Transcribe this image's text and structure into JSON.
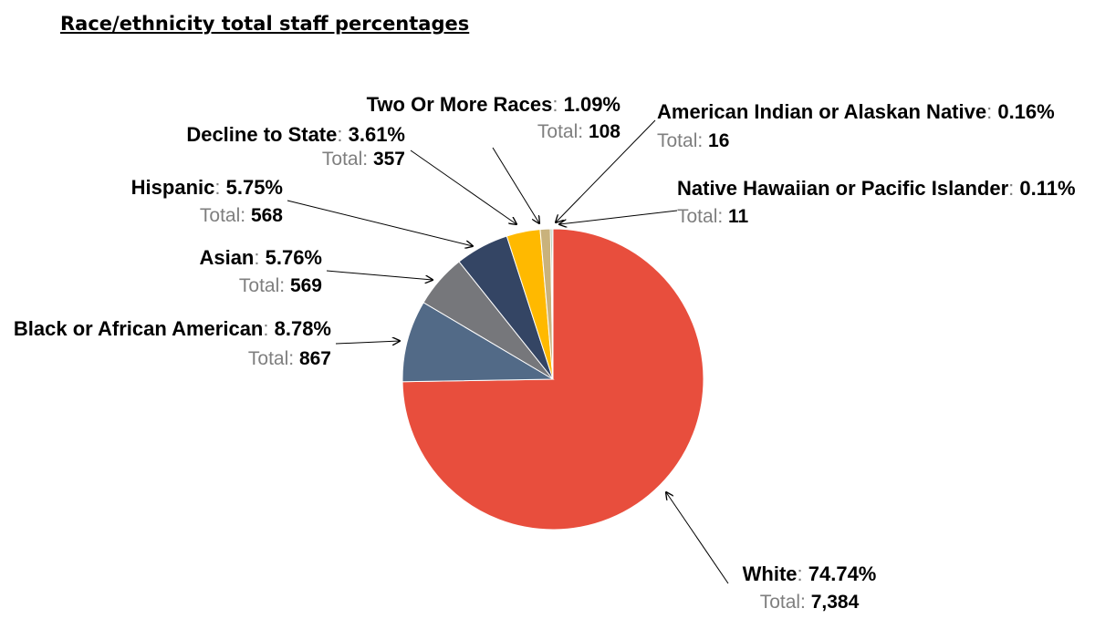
{
  "chart_data": {
    "type": "pie",
    "title": "Race/ethnicity total staff percentages",
    "total_prefix": "Total: ",
    "start_angle_deg": 0,
    "slices": [
      {
        "label": "White",
        "percent": "74.74%",
        "value": 0.7474,
        "total": "7,384",
        "color": "#E84E3D"
      },
      {
        "label": "Black or African American",
        "percent": "8.78%",
        "value": 0.0878,
        "total": "867",
        "color": "#526A87"
      },
      {
        "label": "Asian",
        "percent": "5.76%",
        "value": 0.0576,
        "total": "569",
        "color": "#76777B"
      },
      {
        "label": "Hispanic",
        "percent": "5.75%",
        "value": 0.0575,
        "total": "568",
        "color": "#344564"
      },
      {
        "label": "Decline to State",
        "percent": "3.61%",
        "value": 0.0361,
        "total": "357",
        "color": "#FFB900"
      },
      {
        "label": "Two Or More Races",
        "percent": "1.09%",
        "value": 0.0109,
        "total": "108",
        "color": "#C9B27C"
      },
      {
        "label": "American Indian or Alaskan Native",
        "percent": "0.16%",
        "value": 0.0016,
        "total": "16",
        "color": "#6E9C6C"
      },
      {
        "label": "Native Hawaiian or Pacific Islander",
        "percent": "0.11%",
        "value": 0.0011,
        "total": "11",
        "color": "#33BBBB"
      }
    ]
  }
}
